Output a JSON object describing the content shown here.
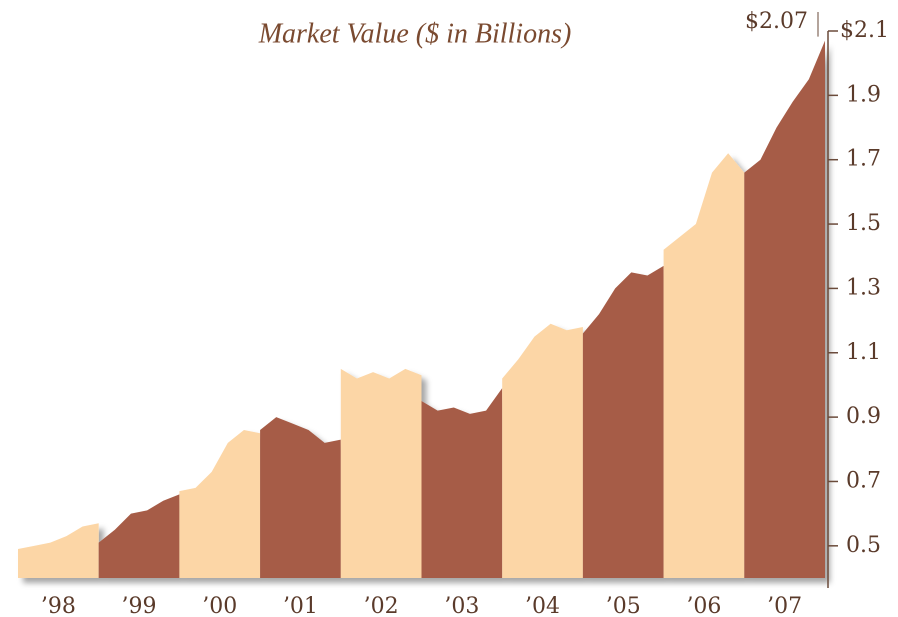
{
  "chart_data": {
    "type": "area",
    "title": "Market Value ($ in Billions)",
    "annotation": "$2.07",
    "categories": [
      "’98",
      "’99",
      "’00",
      "’01",
      "’02",
      "’03",
      "’04",
      "’05",
      "’06",
      "’07"
    ],
    "values": [
      [
        0.49,
        0.5,
        0.51,
        0.53,
        0.56,
        0.57
      ],
      [
        0.51,
        0.55,
        0.6,
        0.61,
        0.64,
        0.66
      ],
      [
        0.67,
        0.68,
        0.73,
        0.82,
        0.86,
        0.85
      ],
      [
        0.86,
        0.9,
        0.88,
        0.86,
        0.82,
        0.83
      ],
      [
        1.05,
        1.02,
        1.04,
        1.02,
        1.05,
        1.03
      ],
      [
        0.95,
        0.92,
        0.93,
        0.91,
        0.92,
        0.99
      ],
      [
        1.02,
        1.08,
        1.15,
        1.19,
        1.17,
        1.18
      ],
      [
        1.16,
        1.22,
        1.3,
        1.35,
        1.34,
        1.37
      ],
      [
        1.42,
        1.46,
        1.5,
        1.66,
        1.72,
        1.66
      ],
      [
        1.66,
        1.7,
        1.8,
        1.88,
        1.95,
        2.07
      ]
    ],
    "colors": [
      "#fcd6a6",
      "#a65c46"
    ],
    "ylim": [
      0.4,
      2.1
    ],
    "yticks": [
      {
        "value": 2.1,
        "label": "$2.1"
      },
      1.9,
      1.7,
      1.5,
      1.3,
      1.1,
      0.9,
      0.7,
      0.5
    ],
    "axis_side": "right"
  }
}
